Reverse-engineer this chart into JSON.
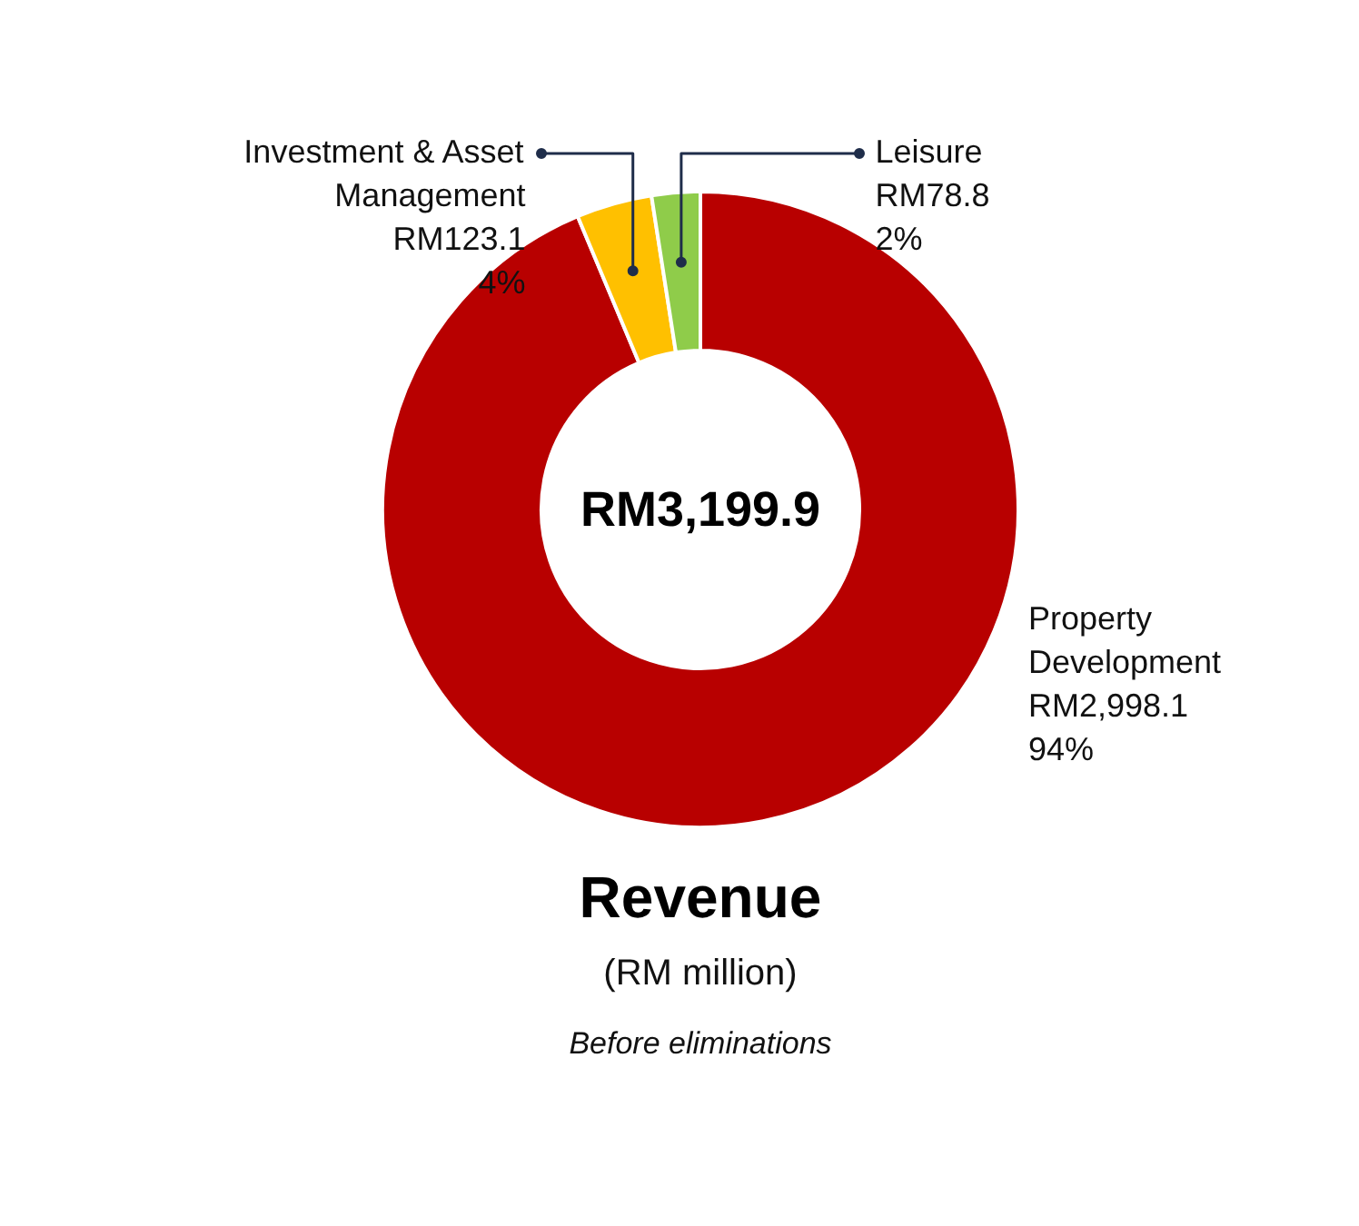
{
  "chart_data": {
    "type": "donut",
    "title": "Revenue",
    "subtitle": "(RM million)",
    "annotations": [
      "RM3,199.9",
      "Before eliminations"
    ],
    "categories": [
      "Property Development",
      "Investment & Asset Management",
      "Leisure"
    ],
    "values": [
      2998.1,
      123.1,
      78.8
    ],
    "value_labels": [
      "RM2,998.1\n94%",
      "RM123.1\n4%",
      "RM78.8\n2%"
    ],
    "colors": [
      "#b80000",
      "#ffc000",
      "#8fcc4a"
    ]
  }
}
